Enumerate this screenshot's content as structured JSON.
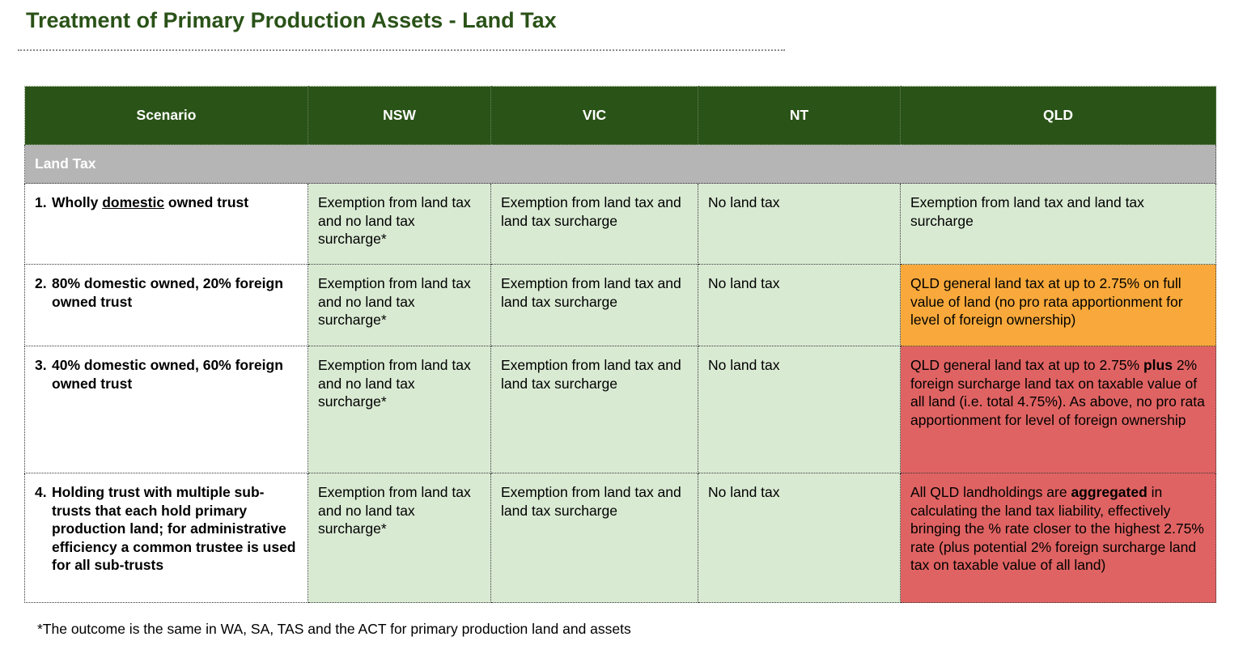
{
  "title": "Treatment of Primary Production Assets - Land Tax",
  "headers": [
    "Scenario",
    "NSW",
    "VIC",
    "NT",
    "QLD"
  ],
  "section_label": "Land Tax",
  "rows": [
    {
      "num": "1.",
      "scenario_pre": "Wholly ",
      "scenario_underlined": "domestic",
      "scenario_post": " owned trust",
      "nsw": "Exemption from land tax and no land tax surcharge*",
      "vic": "Exemption from land tax and land tax surcharge",
      "nt": "No land tax",
      "qld": "Exemption from land tax and land tax surcharge"
    },
    {
      "num": "2.",
      "scenario": "80% domestic owned, 20% foreign owned trust",
      "nsw": "Exemption from land tax and no land tax surcharge*",
      "vic": "Exemption from land tax and land tax surcharge",
      "nt": "No land tax",
      "qld": "QLD general land tax at up to 2.75% on full value of land (no pro rata apportionment for level of foreign ownership)"
    },
    {
      "num": "3.",
      "scenario": "40% domestic owned, 60% foreign owned trust",
      "nsw": "Exemption from land tax and no land tax surcharge*",
      "vic": "Exemption from land tax and land tax surcharge",
      "nt": "No land tax",
      "qld_pre": "QLD general land tax at up to 2.75% ",
      "qld_bold": "plus",
      "qld_post": " 2% foreign surcharge land tax on taxable value of all land (i.e. total 4.75%). As above, no pro rata apportionment for level of foreign ownership"
    },
    {
      "num": "4.",
      "scenario": "Holding trust with multiple sub-trusts that each hold primary production land; for administrative efficiency a common trustee is  used for all sub-trusts",
      "nsw": "Exemption from land tax and no land tax surcharge*",
      "vic": "Exemption from land tax and land tax surcharge",
      "nt": "No land tax",
      "qld_pre": "All QLD landholdings are ",
      "qld_bold": "aggregated",
      "qld_post": " in calculating the land tax liability, effectively bringing the % rate closer to the highest 2.75% rate (plus potential 2% foreign surcharge land tax on taxable value of all land)"
    }
  ],
  "footnote": "*The outcome is the same in WA, SA, TAS and the ACT for primary production land and assets",
  "colors": {
    "title": "#2a5218",
    "header_bg": "#2a5317",
    "section_bg": "#b5b5b5",
    "exempt_green": "#d9ead3",
    "qld_orange": "#f9a93b",
    "qld_red": "#e06363"
  }
}
